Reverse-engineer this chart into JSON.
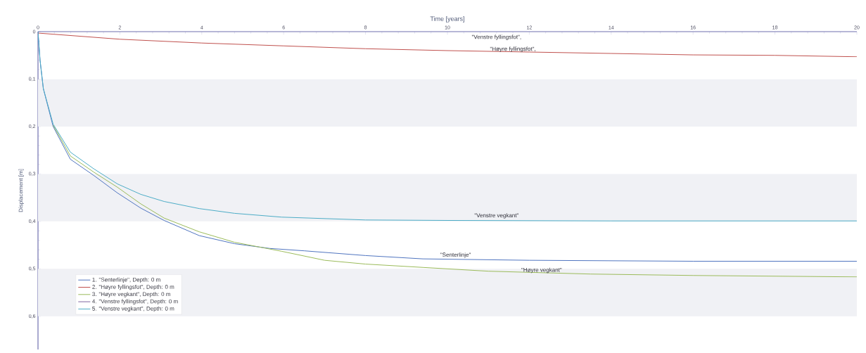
{
  "chart_data": {
    "type": "line",
    "xlabel": "Time [years]",
    "ylabel": "Displacement [m]",
    "xlim": [
      0,
      20
    ],
    "ylim": [
      0.67,
      0
    ],
    "xticks": [
      0,
      2,
      4,
      6,
      8,
      10,
      12,
      14,
      16,
      18,
      20
    ],
    "yticks": [
      0,
      {
        "value": 0.1,
        "label": "0,1"
      },
      {
        "value": 0.2,
        "label": "0,2"
      },
      {
        "value": 0.3,
        "label": "0,3"
      },
      {
        "value": 0.4,
        "label": "0,4"
      },
      {
        "value": 0.5,
        "label": "0,5"
      },
      {
        "value": 0.6,
        "label": "0,6"
      }
    ],
    "grid": false,
    "legend": "bottom left",
    "marker": "none",
    "line_style": "solid",
    "bands": [
      {
        "axis": "y",
        "from": 0.1,
        "to": 0.2,
        "color": "#f0f1f5"
      },
      {
        "axis": "y",
        "from": 0.3,
        "to": 0.4,
        "color": "#f0f1f5"
      },
      {
        "axis": "y",
        "from": 0.5,
        "to": 0.6,
        "color": "#f0f1f5"
      }
    ],
    "series": [
      {
        "name": "1. \"Senterlinje\", Depth: 0 m",
        "color": "#4f74c0",
        "x": [
          0,
          0.05,
          0.13,
          0.37,
          0.79,
          1.36,
          1.94,
          2.51,
          3.08,
          3.94,
          4.8,
          5.66,
          6.5,
          8,
          9.4,
          12,
          16,
          20
        ],
        "values": [
          0,
          0.06,
          0.12,
          0.2,
          0.269,
          0.303,
          0.34,
          0.372,
          0.398,
          0.43,
          0.447,
          0.457,
          0.462,
          0.472,
          0.479,
          0.482,
          0.484,
          0.484
        ]
      },
      {
        "name": "2. \"Høyre fyllingsfot\", Depth: 0 m",
        "color": "#c0504d",
        "x": [
          0,
          2,
          4,
          6,
          8,
          10,
          12,
          14,
          16,
          18,
          20
        ],
        "values": [
          0.003,
          0.016,
          0.024,
          0.03,
          0.036,
          0.04,
          0.043,
          0.046,
          0.049,
          0.05,
          0.053
        ]
      },
      {
        "name": "3. \"Høyre vegkant\", Depth: 0 m",
        "color": "#9bbb59",
        "x": [
          0.37,
          0.79,
          1.36,
          1.94,
          2.51,
          3.08,
          3.94,
          4.8,
          5.95,
          7,
          8,
          9.4,
          11,
          13.5,
          16,
          20
        ],
        "values": [
          0.197,
          0.262,
          0.296,
          0.328,
          0.363,
          0.393,
          0.422,
          0.444,
          0.463,
          0.482,
          0.49,
          0.497,
          0.505,
          0.511,
          0.514,
          0.517
        ]
      },
      {
        "name": "4. \"Venstre fyllingsfot\", Depth: 0 m",
        "color": "#8064a2",
        "values": [
          null
        ]
      },
      {
        "name": "5. \"Venstre vegkant\", Depth: 0 m",
        "color": "#4bacc6",
        "x": [
          0,
          0.05,
          0.13,
          0.37,
          0.79,
          1.36,
          1.94,
          2.51,
          3.08,
          3.94,
          4.8,
          5.95,
          8,
          10,
          14,
          20
        ],
        "values": [
          0,
          0.06,
          0.12,
          0.195,
          0.254,
          0.289,
          0.321,
          0.343,
          0.358,
          0.373,
          0.383,
          0.391,
          0.397,
          0.398,
          0.399,
          0.399
        ]
      }
    ],
    "annotations": [
      "\"Venstre fyllingsfot\",",
      {
        "text": "\"Høyre fyllingsfot\",",
        "x": 11.6,
        "y": 0.046
      },
      {
        "text": "\"Venstre vegkant\"",
        "x": 11.2,
        "y": 0.397
      },
      {
        "text": "\"Senterlinje\"",
        "x": 10.2,
        "y": 0.48
      },
      {
        "text": "\"Høyre vegkant\"",
        "x": 12.3,
        "y": 0.512
      }
    ]
  }
}
